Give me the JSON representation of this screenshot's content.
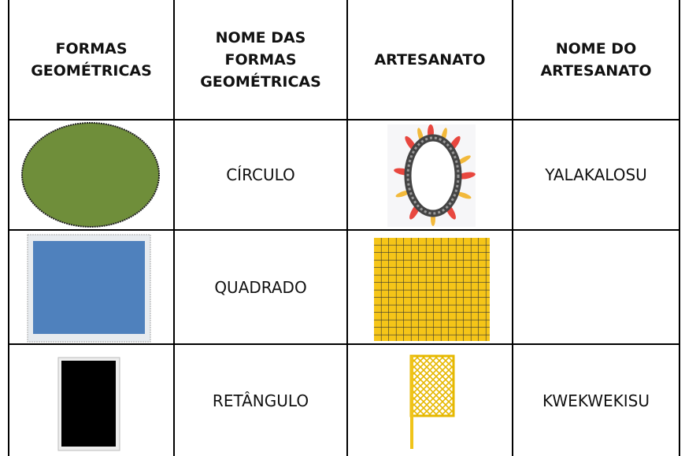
{
  "table": {
    "headers": [
      "FORMAS GEOMÉTRICAS",
      "NOME DAS FORMAS GEOMÉTRICAS",
      "ARTESANATO",
      "NOME DO ARTESANATO"
    ],
    "rows": [
      {
        "shape_name": "CÍRCULO",
        "craft_name": "YALAKALOSU"
      },
      {
        "shape_name": "QUADRADO"
      },
      {
        "shape_name": "RETÂNGULO",
        "craft_name": "KWEKWEKISU"
      }
    ]
  }
}
